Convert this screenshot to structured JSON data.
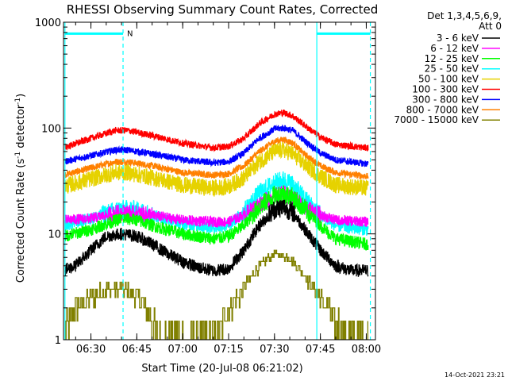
{
  "chart_data": {
    "type": "line",
    "title": "RHESSI Observing Summary Count Rates, Corrected",
    "xlabel": "Start Time (20-Jul-08 06:21:02)",
    "ylabel_main": "Corrected Count Rate (s",
    "ylabel_sup1": "-1",
    "ylabel_mid": " detector",
    "ylabel_sup2": "-1",
    "ylabel_end": ")",
    "y_scale": "log",
    "ylim": [
      1,
      1000
    ],
    "xlim": [
      "06:21:02",
      "08:03:00"
    ],
    "x_ticks": [
      "06:30",
      "06:45",
      "07:00",
      "07:15",
      "07:30",
      "07:45",
      "08:00"
    ],
    "y_ticks": [
      "1",
      "10",
      "100",
      "1000"
    ],
    "legend_header": [
      "Det 1,3,4,5,6,9,",
      "Att 0"
    ],
    "legend_position": "right",
    "timestamp": "14-Oct-2021 23:21",
    "flag_label": "N",
    "series": [
      {
        "name": "3 - 6 keV",
        "color": "#000000",
        "noise": 0.06,
        "points": [
          [
            "06:21",
            4.5
          ],
          [
            "06:25",
            5
          ],
          [
            "06:30",
            7
          ],
          [
            "06:35",
            9.5
          ],
          [
            "06:40",
            10
          ],
          [
            "06:45",
            9.5
          ],
          [
            "06:50",
            8
          ],
          [
            "06:55",
            6.5
          ],
          [
            "07:00",
            5.5
          ],
          [
            "07:05",
            4.8
          ],
          [
            "07:10",
            4.5
          ],
          [
            "07:15",
            4.7
          ],
          [
            "07:20",
            7
          ],
          [
            "07:25",
            12
          ],
          [
            "07:30",
            17
          ],
          [
            "07:33",
            18
          ],
          [
            "07:36",
            16
          ],
          [
            "07:40",
            11
          ],
          [
            "07:45",
            7
          ],
          [
            "07:50",
            5
          ],
          [
            "07:55",
            4.5
          ],
          [
            "08:00",
            4.5
          ]
        ]
      },
      {
        "name": "6 - 12 keV",
        "color": "#ff00ff",
        "noise": 0.05,
        "points": [
          [
            "06:21",
            13.5
          ],
          [
            "06:30",
            14
          ],
          [
            "06:40",
            16
          ],
          [
            "06:50",
            15
          ],
          [
            "07:00",
            13.5
          ],
          [
            "07:10",
            13
          ],
          [
            "07:15",
            13
          ],
          [
            "07:20",
            15
          ],
          [
            "07:25",
            19
          ],
          [
            "07:30",
            23
          ],
          [
            "07:33",
            24
          ],
          [
            "07:36",
            22
          ],
          [
            "07:40",
            18
          ],
          [
            "07:45",
            15
          ],
          [
            "07:50",
            13.5
          ],
          [
            "08:00",
            13
          ]
        ]
      },
      {
        "name": "12 - 25 keV",
        "color": "#00ff00",
        "noise": 0.06,
        "points": [
          [
            "06:21",
            9.5
          ],
          [
            "06:30",
            11
          ],
          [
            "06:40",
            14
          ],
          [
            "06:45",
            13.5
          ],
          [
            "06:50",
            12
          ],
          [
            "07:00",
            10
          ],
          [
            "07:10",
            9
          ],
          [
            "07:15",
            9.5
          ],
          [
            "07:20",
            12
          ],
          [
            "07:25",
            18
          ],
          [
            "07:30",
            23
          ],
          [
            "07:33",
            24
          ],
          [
            "07:36",
            22
          ],
          [
            "07:40",
            17
          ],
          [
            "07:45",
            12
          ],
          [
            "07:50",
            9
          ],
          [
            "08:00",
            8
          ]
        ]
      },
      {
        "name": "25 - 50 keV",
        "color": "#00ffff",
        "noise": 0.06,
        "points": [
          [
            "06:21",
            12
          ],
          [
            "06:30",
            14
          ],
          [
            "06:40",
            17
          ],
          [
            "06:45",
            16.5
          ],
          [
            "06:50",
            15
          ],
          [
            "07:00",
            12.5
          ],
          [
            "07:10",
            11.5
          ],
          [
            "07:15",
            12
          ],
          [
            "07:20",
            16
          ],
          [
            "07:25",
            24
          ],
          [
            "07:30",
            30
          ],
          [
            "07:33",
            32
          ],
          [
            "07:36",
            29
          ],
          [
            "07:40",
            21
          ],
          [
            "07:45",
            15
          ],
          [
            "07:50",
            12
          ],
          [
            "08:00",
            11
          ]
        ]
      },
      {
        "name": "50 - 100 keV",
        "color": "#e6d200",
        "noise": 0.05,
        "points": [
          [
            "06:21",
            28
          ],
          [
            "06:30",
            33
          ],
          [
            "06:38",
            38
          ],
          [
            "06:42",
            38
          ],
          [
            "06:50",
            34
          ],
          [
            "07:00",
            29
          ],
          [
            "07:10",
            27
          ],
          [
            "07:15",
            28
          ],
          [
            "07:20",
            34
          ],
          [
            "07:25",
            48
          ],
          [
            "07:30",
            60
          ],
          [
            "07:33",
            62
          ],
          [
            "07:36",
            57
          ],
          [
            "07:40",
            45
          ],
          [
            "07:45",
            35
          ],
          [
            "07:50",
            29
          ],
          [
            "08:00",
            27
          ]
        ]
      },
      {
        "name": "100 - 300 keV",
        "color": "#ff0000",
        "noise": 0.02,
        "points": [
          [
            "06:21",
            65
          ],
          [
            "06:30",
            80
          ],
          [
            "06:38",
            95
          ],
          [
            "06:42",
            95
          ],
          [
            "06:50",
            85
          ],
          [
            "07:00",
            72
          ],
          [
            "07:10",
            65
          ],
          [
            "07:15",
            67
          ],
          [
            "07:20",
            80
          ],
          [
            "07:25",
            110
          ],
          [
            "07:30",
            135
          ],
          [
            "07:33",
            140
          ],
          [
            "07:36",
            130
          ],
          [
            "07:40",
            105
          ],
          [
            "07:45",
            82
          ],
          [
            "07:50",
            70
          ],
          [
            "08:00",
            65
          ]
        ]
      },
      {
        "name": "300 - 800 keV",
        "color": "#0000ff",
        "noise": 0.02,
        "points": [
          [
            "06:21",
            48
          ],
          [
            "06:30",
            55
          ],
          [
            "06:38",
            62
          ],
          [
            "06:42",
            62
          ],
          [
            "06:50",
            57
          ],
          [
            "07:00",
            50
          ],
          [
            "07:10",
            47
          ],
          [
            "07:15",
            48
          ],
          [
            "07:20",
            58
          ],
          [
            "07:25",
            80
          ],
          [
            "07:30",
            98
          ],
          [
            "07:33",
            100
          ],
          [
            "07:36",
            95
          ],
          [
            "07:40",
            75
          ],
          [
            "07:45",
            58
          ],
          [
            "07:50",
            50
          ],
          [
            "08:00",
            46
          ]
        ]
      },
      {
        "name": "800 - 7000 keV",
        "color": "#ff8000",
        "noise": 0.02,
        "points": [
          [
            "06:21",
            36
          ],
          [
            "06:30",
            42
          ],
          [
            "06:38",
            48
          ],
          [
            "06:42",
            48
          ],
          [
            "06:50",
            44
          ],
          [
            "07:00",
            38
          ],
          [
            "07:10",
            36
          ],
          [
            "07:15",
            37
          ],
          [
            "07:20",
            44
          ],
          [
            "07:25",
            60
          ],
          [
            "07:30",
            75
          ],
          [
            "07:33",
            78
          ],
          [
            "07:36",
            72
          ],
          [
            "07:40",
            56
          ],
          [
            "07:45",
            44
          ],
          [
            "07:50",
            38
          ],
          [
            "08:00",
            35
          ]
        ]
      },
      {
        "name": "7000 - 15000 keV",
        "color": "#808000",
        "noise": 0,
        "points": [
          [
            "06:21",
            1
          ],
          [
            "06:25",
            2
          ],
          [
            "06:30",
            2.5
          ],
          [
            "06:35",
            3
          ],
          [
            "06:40",
            3
          ],
          [
            "06:45",
            2.5
          ],
          [
            "06:48",
            2
          ],
          [
            "06:52",
            1
          ],
          [
            "07:10",
            1
          ],
          [
            "07:15",
            2
          ],
          [
            "07:20",
            3
          ],
          [
            "07:25",
            5
          ],
          [
            "07:30",
            6.5
          ],
          [
            "07:35",
            6
          ],
          [
            "07:40",
            4
          ],
          [
            "07:45",
            2.5
          ],
          [
            "07:50",
            1.5
          ],
          [
            "07:55",
            1
          ],
          [
            "08:00",
            1
          ]
        ]
      }
    ],
    "markers": {
      "solid_x": [
        "06:21:30",
        "07:43:50"
      ],
      "dashed_x": [
        "06:40:30",
        "08:01:20"
      ],
      "bars": [
        [
          "06:21:30",
          "06:40:30"
        ],
        [
          "07:43:50",
          "08:01:20"
        ]
      ],
      "bar_level": 780
    }
  }
}
